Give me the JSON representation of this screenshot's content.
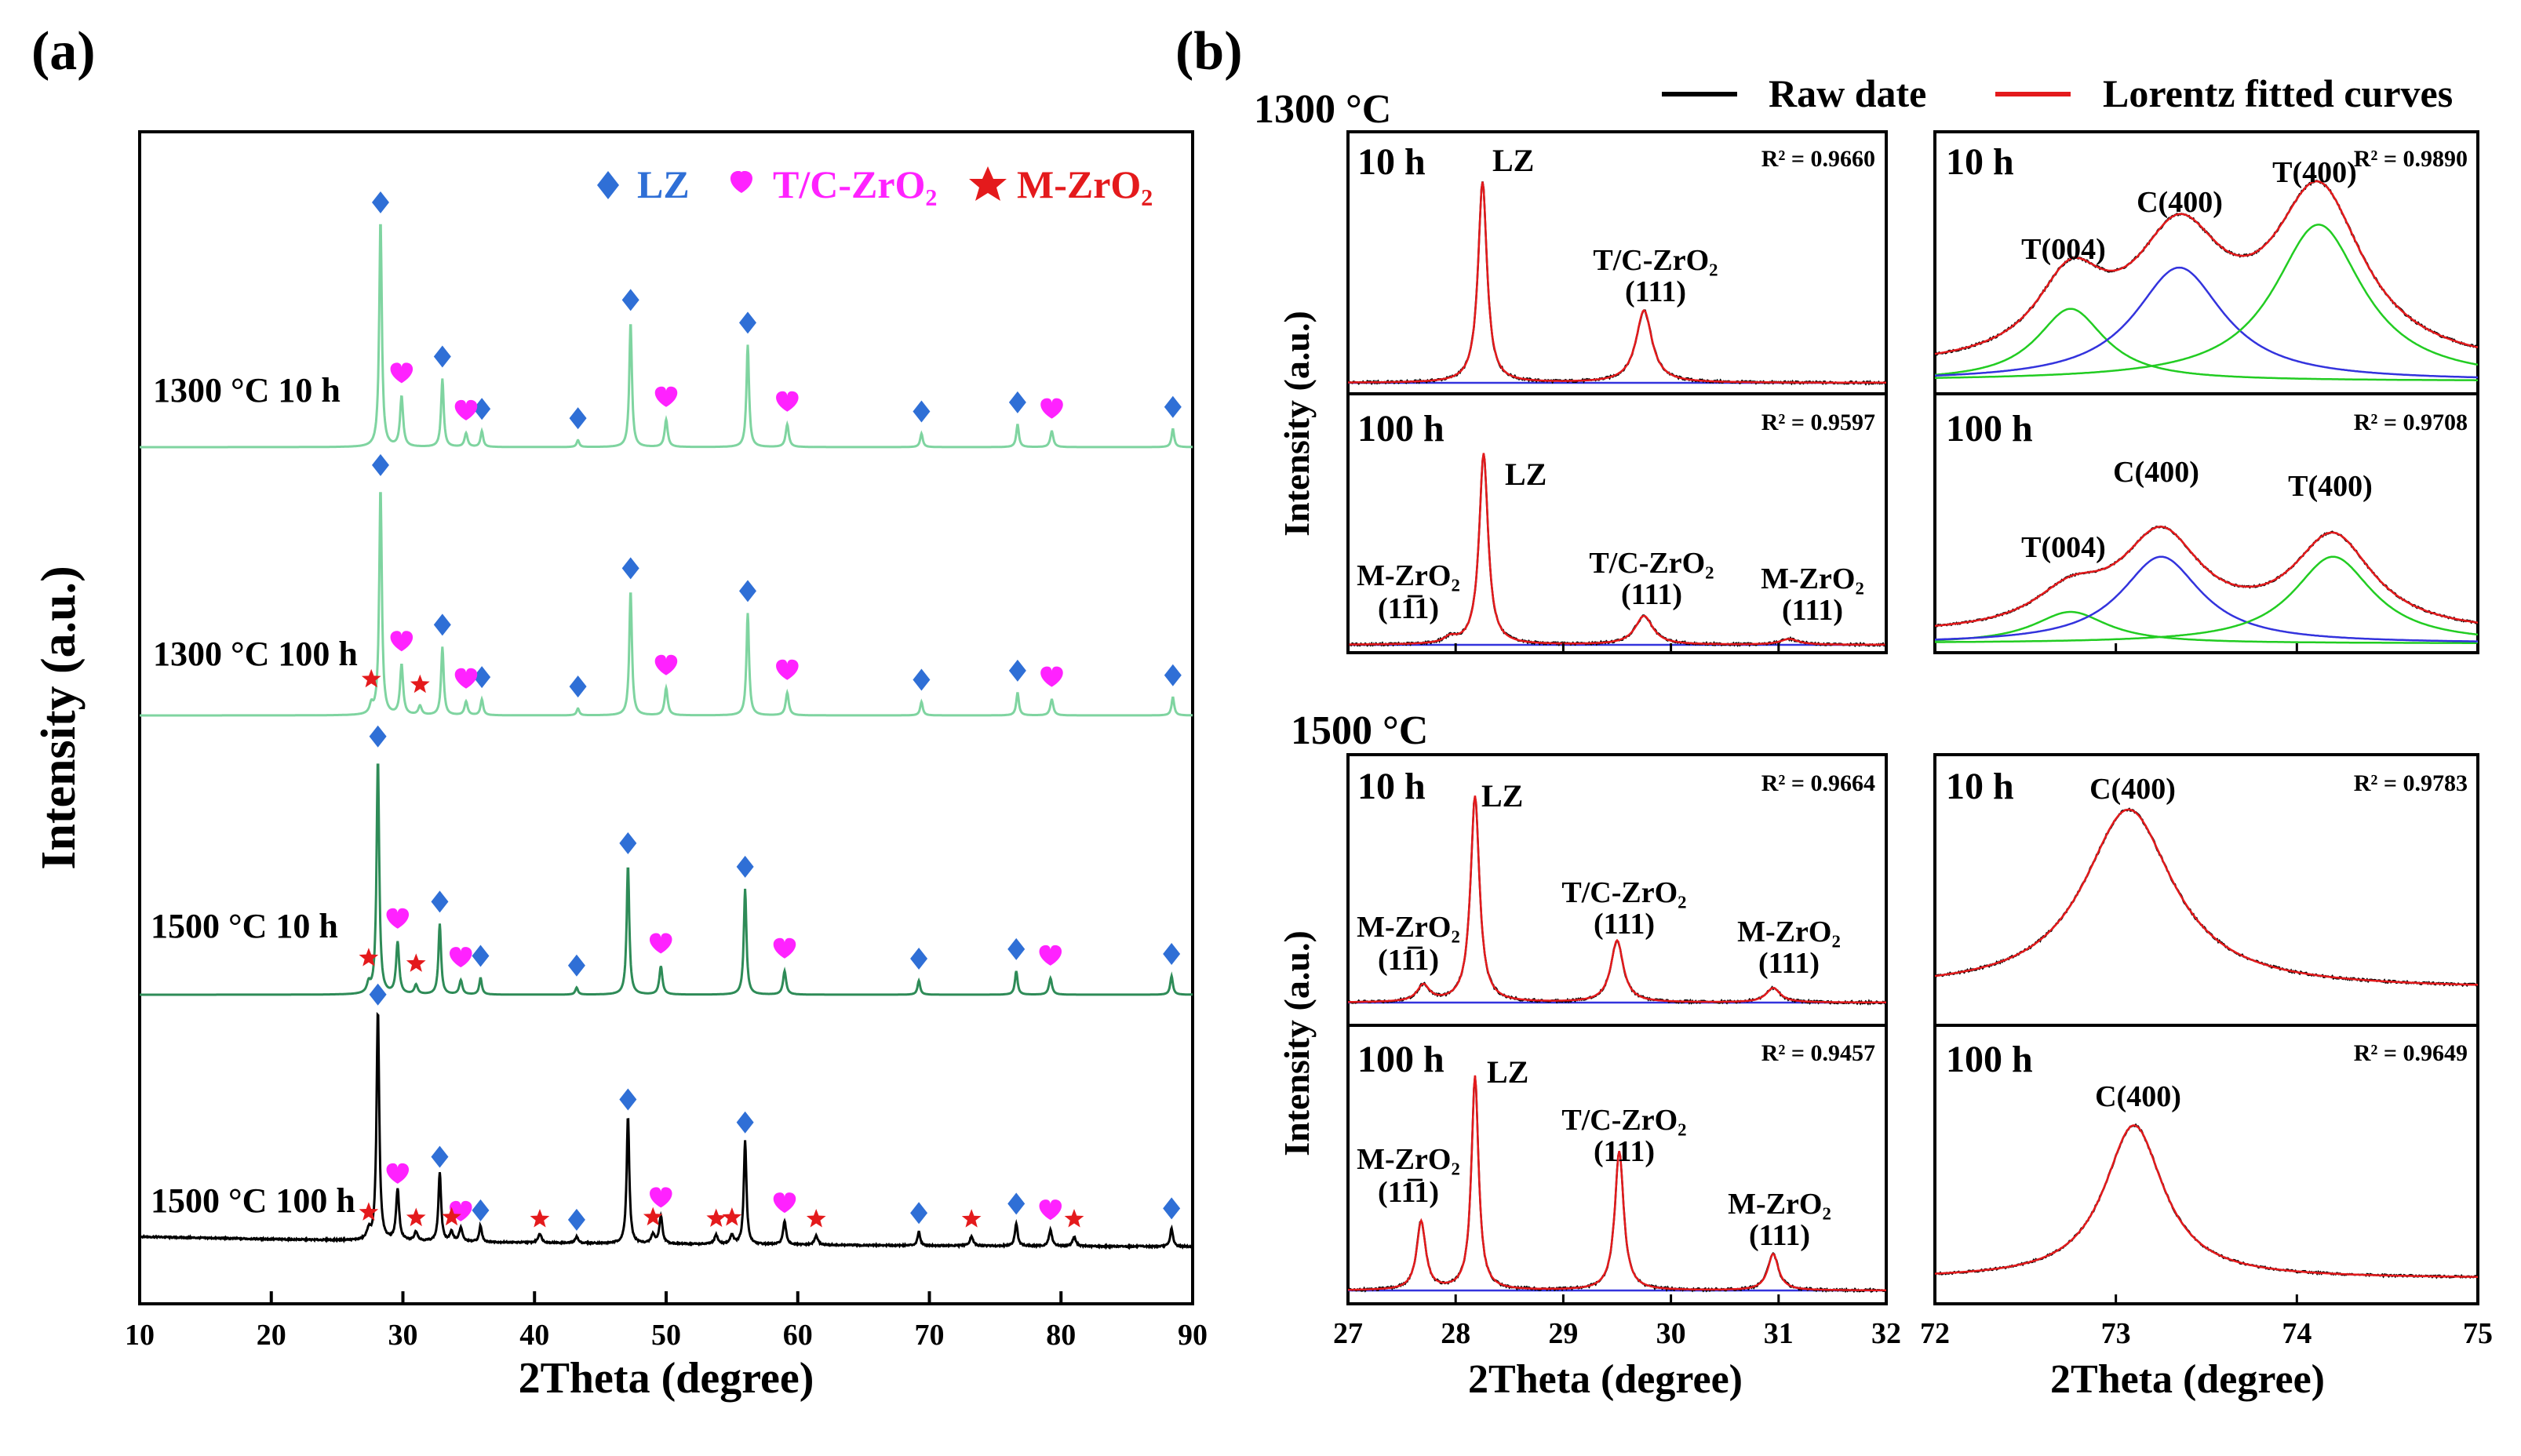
{
  "figure": {
    "panel_a_label": "(a)",
    "panel_b_label": "(b)",
    "legend_b": {
      "raw_label": "Raw date",
      "fit_label": "Lorentz fitted curves",
      "raw_color": "#000000",
      "fit_color": "#e41a1c",
      "component_colors": {
        "C": "#3333dd",
        "T": "#22cc22"
      }
    },
    "group_labels": {
      "top": "1300 °C",
      "bottom": "1500 °C"
    },
    "ylabel_b": "Intensity (a.u.)",
    "xlabel_b": "2Theta (degree)",
    "subpanel_texts": {
      "p1": {
        "time": "10 h",
        "r2": "R² = 0.9660",
        "lz": "LZ",
        "tc_top": "T/C-ZrO₂",
        "tc_bot": "(111)"
      },
      "p2": {
        "time": "10 h",
        "r2": "R² = 0.9890",
        "t004": "T(004)",
        "c400": "C(400)",
        "t400": "T(400)"
      },
      "p3": {
        "time": "100 h",
        "r2": "R² = 0.9597",
        "lz": "LZ",
        "mz1_top": "M-ZrO₂",
        "mz1_bot": "(11̅1)",
        "tc_top": "T/C-ZrO₂",
        "tc_bot": "(111)",
        "mz2_top": "M-ZrO₂",
        "mz2_bot": "(111)"
      },
      "p4": {
        "time": "100 h",
        "r2": "R² = 0.9708",
        "t004": "T(004)",
        "c400": "C(400)",
        "t400": "T(400)"
      },
      "p5": {
        "time": "10 h",
        "r2": "R² = 0.9664",
        "lz": "LZ",
        "mz1_top": "M-ZrO₂",
        "mz1_bot": "(11̅1)",
        "tc_top": "T/C-ZrO₂",
        "tc_bot": "(111)",
        "mz2_top": "M-ZrO₂",
        "mz2_bot": "(111)"
      },
      "p6": {
        "time": "10 h",
        "r2": "R² = 0.9783",
        "c400": "C(400)"
      },
      "p7": {
        "time": "100 h",
        "r2": "R² = 0.9457",
        "lz": "LZ",
        "mz1_top": "M-ZrO₂",
        "mz1_bot": "(11̅1)",
        "tc_top": "T/C-ZrO₂",
        "tc_bot": "(111)",
        "mz2_top": "M-ZrO₂",
        "mz2_bot": "(111)"
      },
      "p8": {
        "time": "100 h",
        "r2": "R² = 0.9649",
        "c400": "C(400)"
      }
    }
  },
  "chart_data": [
    {
      "panel": "(a)",
      "type": "line",
      "title": "",
      "xlabel": "2Theta (degree)",
      "ylabel": "Intensity (a.u.)",
      "xlim": [
        10,
        90
      ],
      "xticks": [
        10,
        20,
        30,
        40,
        50,
        60,
        70,
        80,
        90
      ],
      "legend": [
        {
          "label": "LZ",
          "marker": "diamond",
          "color": "#2f6fd6"
        },
        {
          "label": "T/C-ZrO₂",
          "marker": "heart",
          "color": "#ff22ff"
        },
        {
          "label": "M-ZrO₂",
          "marker": "star",
          "color": "#e41a1c"
        }
      ],
      "series": [
        {
          "name": "1300 °C 10 h",
          "color": "#7fd4a0",
          "lz": [
            28.3,
            33.0,
            36.0,
            43.3,
            47.3,
            56.2,
            69.4,
            76.7,
            88.5
          ],
          "tc": [
            29.9,
            34.8,
            50.0,
            59.2,
            79.3
          ],
          "mz": []
        },
        {
          "name": "1300 °C 100 h",
          "color": "#7fd4a0",
          "lz": [
            28.3,
            33.0,
            36.0,
            43.3,
            47.3,
            56.2,
            69.4,
            76.7,
            88.5
          ],
          "tc": [
            29.9,
            34.8,
            50.0,
            59.2,
            79.3
          ],
          "mz": [
            27.6,
            31.3
          ]
        },
        {
          "name": "1500 °C 10 h",
          "color": "#2e8b57",
          "lz": [
            28.1,
            32.8,
            35.9,
            43.2,
            47.1,
            56.0,
            69.2,
            76.6,
            88.4
          ],
          "tc": [
            29.6,
            34.4,
            49.6,
            59.0,
            79.2
          ],
          "mz": [
            27.4,
            31.0
          ]
        },
        {
          "name": "1500 °C 100 h",
          "color": "#000000",
          "lz": [
            28.1,
            32.8,
            35.9,
            43.2,
            47.1,
            56.0,
            69.2,
            76.6,
            88.4
          ],
          "tc": [
            29.6,
            34.4,
            49.6,
            59.0,
            79.2
          ],
          "mz": [
            27.4,
            31.0,
            33.7,
            40.4,
            49.0,
            53.8,
            55.0,
            61.4,
            73.2,
            81.0
          ]
        }
      ]
    },
    {
      "panel": "(b) 1300 °C 10 h, 27–32°",
      "type": "line",
      "xlim": [
        27,
        32
      ],
      "xticks": [
        27,
        28,
        29,
        30,
        31,
        32
      ],
      "r2": 0.966,
      "peaks": [
        {
          "label": "LZ",
          "center": 28.25,
          "height": 1.0,
          "width": 0.05
        },
        {
          "label": "T/C-ZrO₂ (111)",
          "center": 29.75,
          "height": 0.36,
          "width": 0.09
        }
      ]
    },
    {
      "panel": "(b) 1300 °C 10 h, 72–75°",
      "type": "line",
      "xlim": [
        72,
        75
      ],
      "xticks": [
        72,
        73,
        74,
        75
      ],
      "r2": 0.989,
      "peaks": [
        {
          "label": "T(004)",
          "center": 72.75,
          "height": 0.42,
          "width": 0.23,
          "component": "T"
        },
        {
          "label": "C(400)",
          "center": 73.35,
          "height": 0.66,
          "width": 0.3,
          "component": "C"
        },
        {
          "label": "T(400)",
          "center": 74.12,
          "height": 0.91,
          "width": 0.3,
          "component": "T"
        }
      ]
    },
    {
      "panel": "(b) 1300 °C 100 h, 27–32°",
      "type": "line",
      "xlim": [
        27,
        32
      ],
      "xticks": [
        27,
        28,
        29,
        30,
        31,
        32
      ],
      "r2": 0.9597,
      "peaks": [
        {
          "label": "M-ZrO₂ (11̅1)",
          "center": 27.95,
          "height": 0.03,
          "width": 0.07
        },
        {
          "label": "LZ",
          "center": 28.26,
          "height": 1.0,
          "width": 0.05
        },
        {
          "label": "T/C-ZrO₂ (111)",
          "center": 29.75,
          "height": 0.15,
          "width": 0.1
        },
        {
          "label": "M-ZrO₂ (111)",
          "center": 31.1,
          "height": 0.03,
          "width": 0.1
        }
      ]
    },
    {
      "panel": "(b) 1300 °C 100 h, 72–75°",
      "type": "line",
      "xlim": [
        72,
        75
      ],
      "xticks": [
        72,
        73,
        74,
        75
      ],
      "r2": 0.9708,
      "peaks": [
        {
          "label": "T(004)",
          "center": 72.75,
          "height": 0.24,
          "width": 0.25,
          "component": "T"
        },
        {
          "label": "C(400)",
          "center": 73.25,
          "height": 0.66,
          "width": 0.27,
          "component": "C"
        },
        {
          "label": "T(400)",
          "center": 74.2,
          "height": 0.66,
          "width": 0.27,
          "component": "T"
        }
      ]
    },
    {
      "panel": "(b) 1500 °C 10 h, 27–32°",
      "type": "line",
      "xlim": [
        27,
        32
      ],
      "xticks": [
        27,
        28,
        29,
        30,
        31,
        32
      ],
      "r2": 0.9664,
      "peaks": [
        {
          "label": "M-ZrO₂ (11̅1)",
          "center": 27.7,
          "height": 0.08,
          "width": 0.07
        },
        {
          "label": "LZ",
          "center": 28.18,
          "height": 1.0,
          "width": 0.05
        },
        {
          "label": "T/C-ZrO₂ (111)",
          "center": 29.5,
          "height": 0.3,
          "width": 0.07
        },
        {
          "label": "M-ZrO₂ (111)",
          "center": 30.95,
          "height": 0.07,
          "width": 0.08
        }
      ]
    },
    {
      "panel": "(b) 1500 °C 10 h, 72–75°",
      "type": "line",
      "xlim": [
        72,
        75
      ],
      "xticks": [
        72,
        73,
        74,
        75
      ],
      "r2": 0.9783,
      "peaks": [
        {
          "label": "C(400)",
          "center": 73.07,
          "height": 0.93,
          "width": 0.3
        }
      ]
    },
    {
      "panel": "(b) 1500 °C 100 h, 27–32°",
      "type": "line",
      "xlim": [
        27,
        32
      ],
      "xticks": [
        27,
        28,
        29,
        30,
        31,
        32
      ],
      "r2": 0.9457,
      "peaks": [
        {
          "label": "M-ZrO₂ (11̅1)",
          "center": 27.68,
          "height": 0.32,
          "width": 0.05
        },
        {
          "label": "LZ",
          "center": 28.18,
          "height": 1.0,
          "width": 0.04
        },
        {
          "label": "T/C-ZrO₂ (111)",
          "center": 29.52,
          "height": 0.65,
          "width": 0.05
        },
        {
          "label": "M-ZrO₂ (111)",
          "center": 30.95,
          "height": 0.17,
          "width": 0.06
        }
      ]
    },
    {
      "panel": "(b) 1500 °C 100 h, 72–75°",
      "type": "line",
      "xlim": [
        72,
        75
      ],
      "xticks": [
        72,
        73,
        74,
        75
      ],
      "r2": 0.9649,
      "peaks": [
        {
          "label": "C(400)",
          "center": 73.1,
          "height": 0.9,
          "width": 0.2
        }
      ]
    }
  ]
}
